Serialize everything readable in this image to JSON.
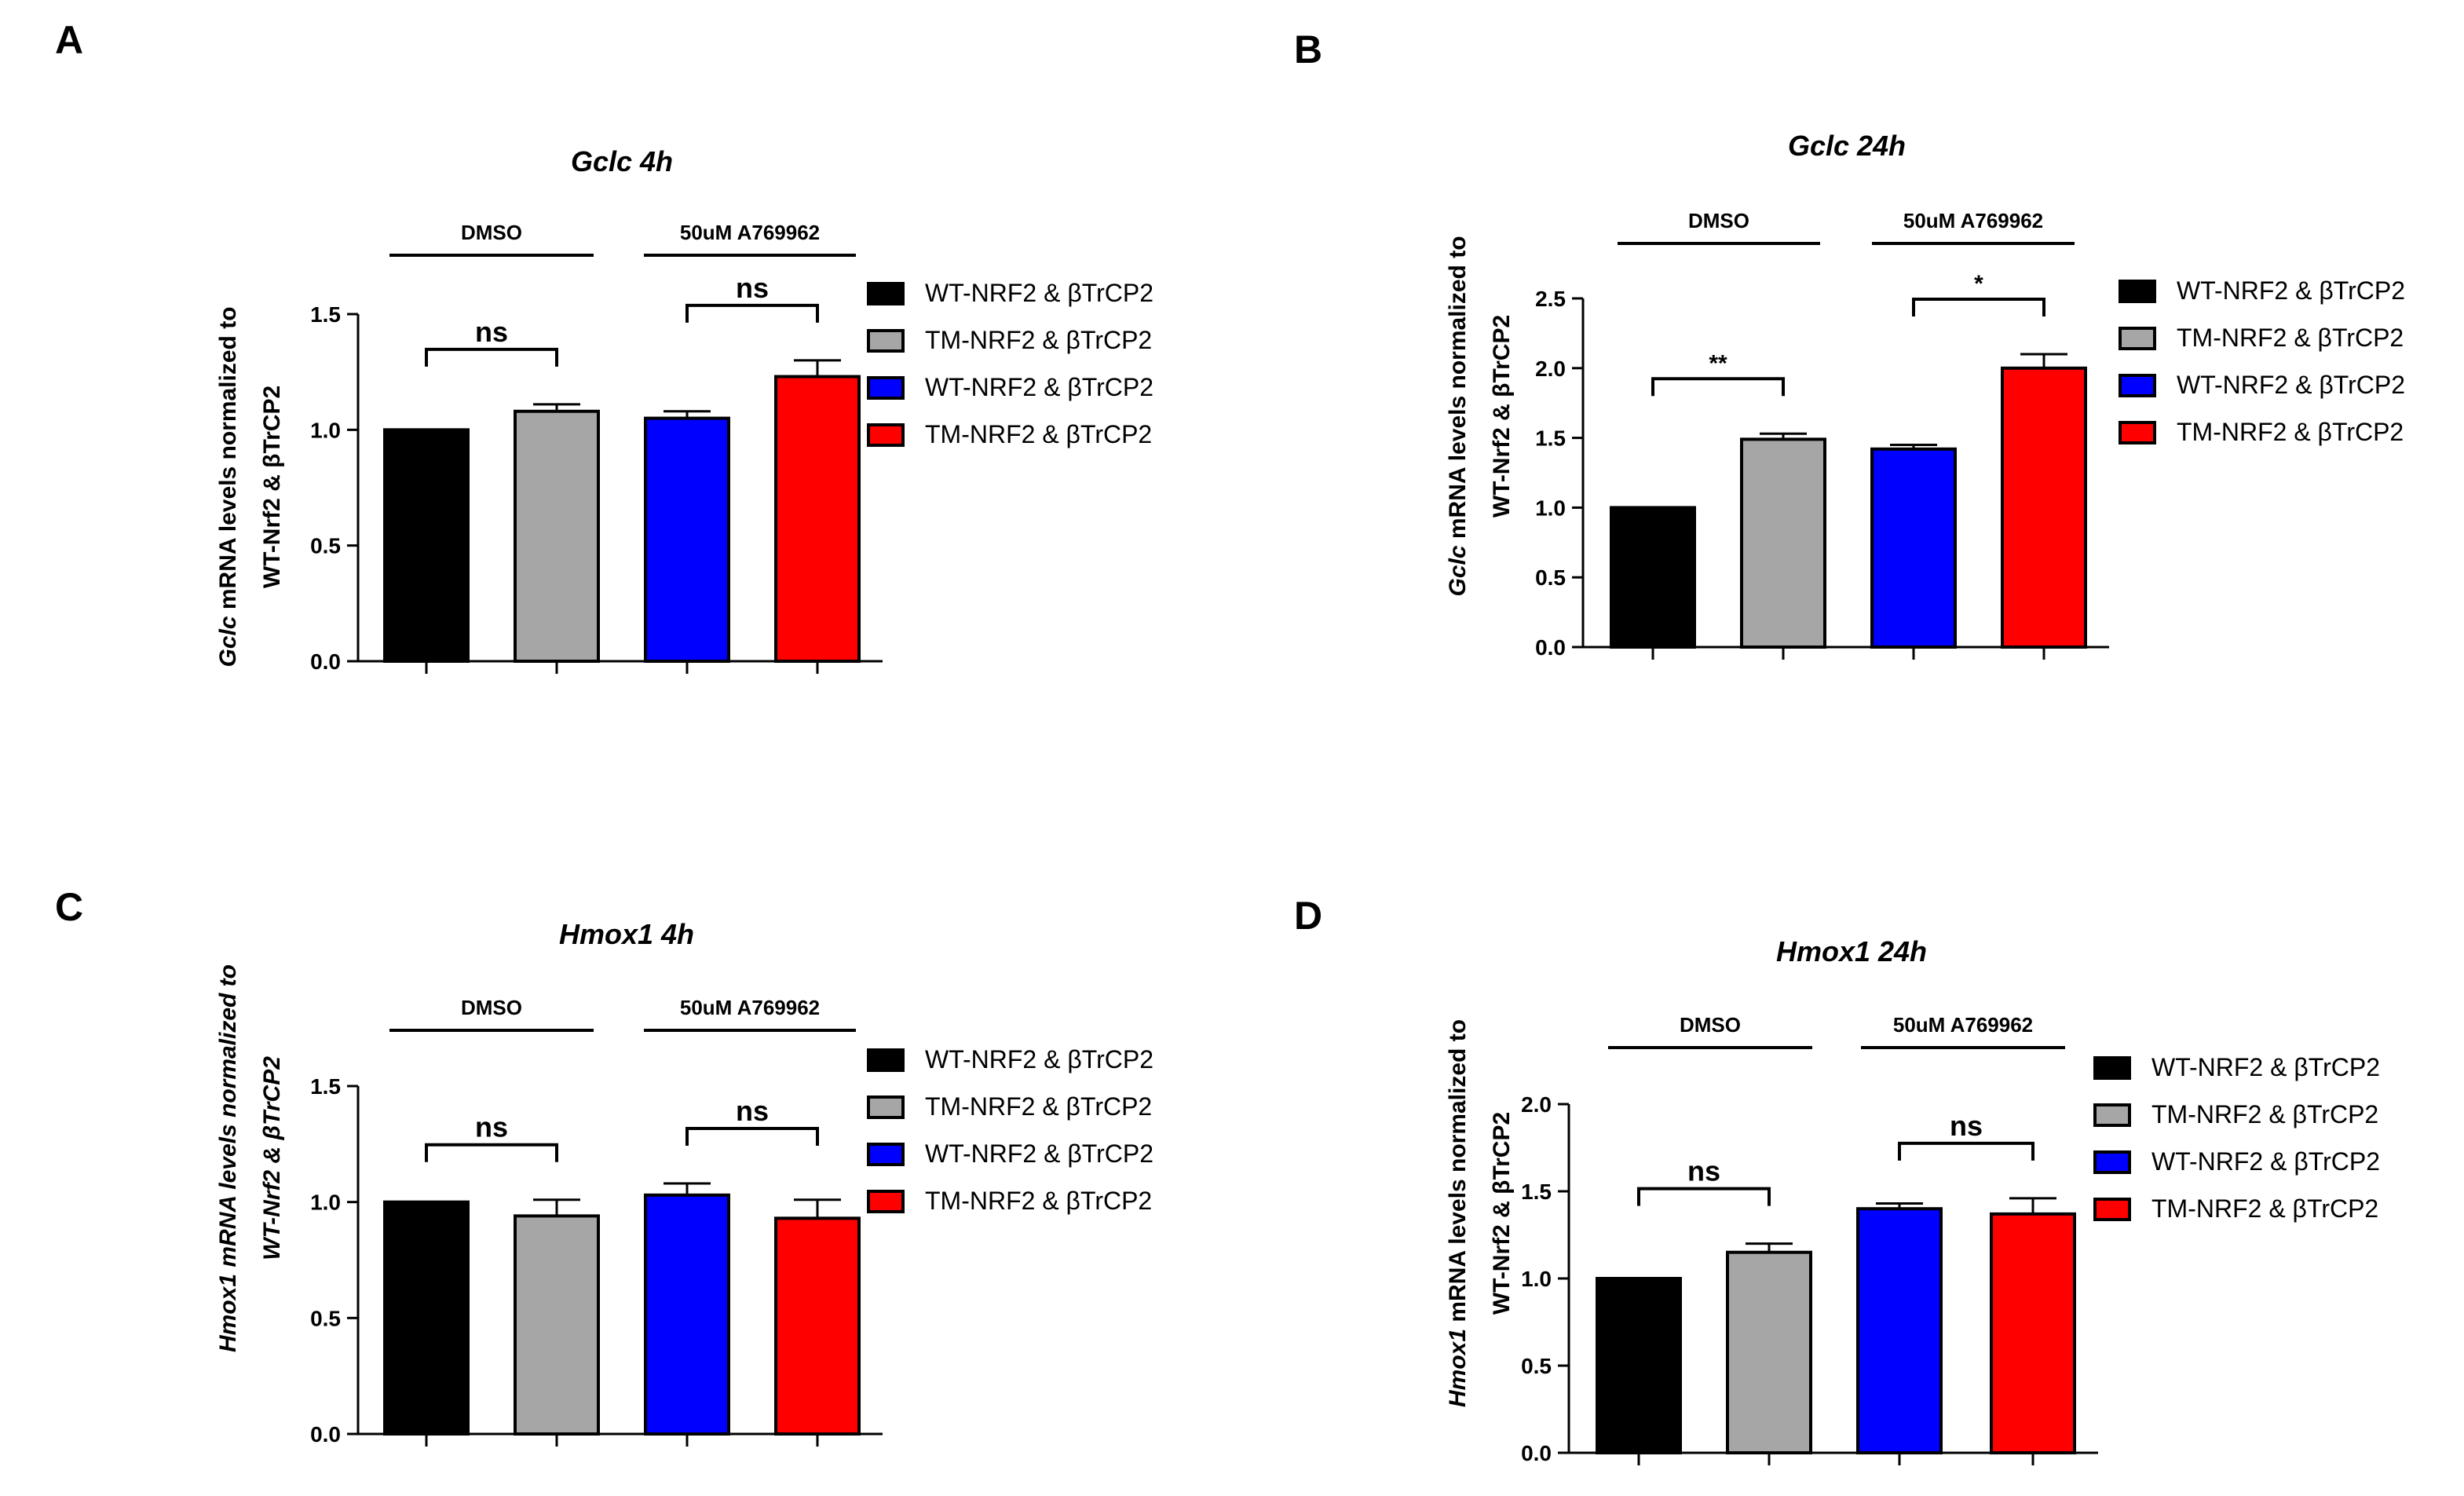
{
  "chart_data": [
    {
      "panel": "A",
      "type": "bar",
      "title": "Gclc 4h",
      "ylabel_italic": "Gclc",
      "ylabel_line1": " mRNA levels normalized to",
      "ylabel_line2": "WT-Nrf2 & βTrCP2",
      "ylabel_full_italic": false,
      "yticks": [
        "0.0",
        "0.5",
        "1.0",
        "1.5"
      ],
      "ylim": [
        0,
        1.5
      ],
      "groups": [
        "DMSO",
        "50uM A769962"
      ],
      "bars": [
        {
          "value": 1.0,
          "error": 0.0,
          "color": "#000000"
        },
        {
          "value": 1.08,
          "error": 0.03,
          "color": "#a6a6a6"
        },
        {
          "value": 1.05,
          "error": 0.03,
          "color": "#0000ff"
        },
        {
          "value": 1.23,
          "error": 0.07,
          "color": "#ff0000"
        }
      ],
      "significance": [
        "ns",
        "ns"
      ],
      "legend": [
        "WT-NRF2 & βTrCP2",
        "TM-NRF2 & βTrCP2",
        "WT-NRF2 & βTrCP2",
        "TM-NRF2 & βTrCP2"
      ]
    },
    {
      "panel": "B",
      "type": "bar",
      "title": "Gclc 24h",
      "ylabel_italic": "Gclc",
      "ylabel_line1": " mRNA levels normalized to",
      "ylabel_line2": "WT-Nrf2 & βTrCP2",
      "ylabel_full_italic": false,
      "yticks": [
        "0.0",
        "0.5",
        "1.0",
        "1.5",
        "2.0",
        "2.5"
      ],
      "ylim": [
        0,
        2.5
      ],
      "groups": [
        "DMSO",
        "50uM A769962"
      ],
      "bars": [
        {
          "value": 1.0,
          "error": 0.0,
          "color": "#000000"
        },
        {
          "value": 1.49,
          "error": 0.04,
          "color": "#a6a6a6"
        },
        {
          "value": 1.42,
          "error": 0.03,
          "color": "#0000ff"
        },
        {
          "value": 2.0,
          "error": 0.1,
          "color": "#ff0000"
        }
      ],
      "significance": [
        "**",
        "*"
      ],
      "legend": [
        "WT-NRF2 & βTrCP2",
        "TM-NRF2 & βTrCP2",
        "WT-NRF2 & βTrCP2",
        "TM-NRF2 & βTrCP2"
      ]
    },
    {
      "panel": "C",
      "type": "bar",
      "title": "Hmox1 4h",
      "ylabel_italic": "Hmox1 mRNA levels normalized to",
      "ylabel_line1": "",
      "ylabel_line2": "WT-Nrf2 & βTrCP2",
      "ylabel_full_italic": true,
      "yticks": [
        "0.0",
        "0.5",
        "1.0",
        "1.5"
      ],
      "ylim": [
        0,
        1.5
      ],
      "groups": [
        "DMSO",
        "50uM A769962"
      ],
      "bars": [
        {
          "value": 1.0,
          "error": 0.0,
          "color": "#000000"
        },
        {
          "value": 0.94,
          "error": 0.07,
          "color": "#a6a6a6"
        },
        {
          "value": 1.03,
          "error": 0.05,
          "color": "#0000ff"
        },
        {
          "value": 0.93,
          "error": 0.08,
          "color": "#ff0000"
        }
      ],
      "significance": [
        "ns",
        "ns"
      ],
      "legend": [
        "WT-NRF2 & βTrCP2",
        "TM-NRF2 & βTrCP2",
        "WT-NRF2 & βTrCP2",
        "TM-NRF2 & βTrCP2"
      ]
    },
    {
      "panel": "D",
      "type": "bar",
      "title": "Hmox1 24h",
      "ylabel_italic": "Hmox1",
      "ylabel_line1": " mRNA levels normalized to",
      "ylabel_line2": "WT-Nrf2 & βTrCP2",
      "ylabel_full_italic": false,
      "yticks": [
        "0.0",
        "0.5",
        "1.0",
        "1.5",
        "2.0"
      ],
      "ylim": [
        0,
        2.0
      ],
      "groups": [
        "DMSO",
        "50uM A769962"
      ],
      "bars": [
        {
          "value": 1.0,
          "error": 0.0,
          "color": "#000000"
        },
        {
          "value": 1.15,
          "error": 0.05,
          "color": "#a6a6a6"
        },
        {
          "value": 1.4,
          "error": 0.03,
          "color": "#0000ff"
        },
        {
          "value": 1.37,
          "error": 0.09,
          "color": "#ff0000"
        }
      ],
      "significance": [
        "ns",
        "ns"
      ],
      "legend": [
        "WT-NRF2 & βTrCP2",
        "TM-NRF2 & βTrCP2",
        "WT-NRF2 & βTrCP2",
        "TM-NRF2 & βTrCP2"
      ]
    }
  ]
}
